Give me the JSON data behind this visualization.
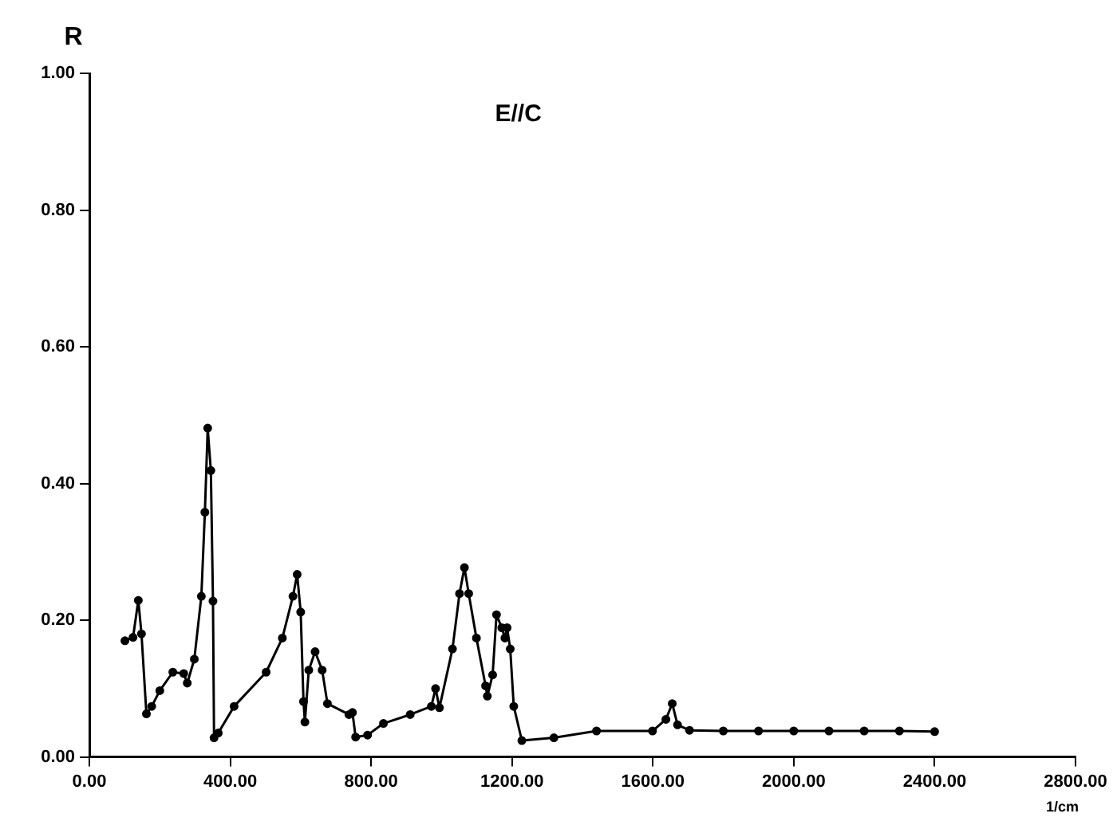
{
  "chart_data": {
    "type": "line",
    "title": "E//C",
    "ylabel": "R",
    "xlabel": "1/cm",
    "marker": "circle",
    "line_style": "solid",
    "xlim": [
      0,
      2800
    ],
    "xticks": [
      {
        "value": 0,
        "label": "0.00"
      },
      {
        "value": 400,
        "label": "400.00"
      },
      {
        "value": 800,
        "label": "800.00"
      },
      {
        "value": 1200,
        "label": "1200.00"
      },
      {
        "value": 1600,
        "label": "1600.00"
      },
      {
        "value": 2000,
        "label": "2000.00"
      },
      {
        "value": 2400,
        "label": "2400.00"
      },
      {
        "value": 2800,
        "label": "2800.00"
      }
    ],
    "ylim": [
      0,
      1
    ],
    "yticks": [
      {
        "value": 0,
        "label": "0.00"
      },
      {
        "value": 0.2,
        "label": "0.20"
      },
      {
        "value": 0.4,
        "label": "0.40"
      },
      {
        "value": 0.6,
        "label": "0.60"
      },
      {
        "value": 0.8,
        "label": "0.80"
      },
      {
        "value": 1,
        "label": "1.00"
      }
    ],
    "series": [
      {
        "color": "#000000",
        "x": [
          101,
          124,
          139,
          148,
          162,
          177,
          200,
          237,
          268,
          278,
          298,
          318,
          328,
          336,
          345,
          351,
          354,
          366,
          411,
          502,
          548,
          578,
          590,
          600,
          608,
          612,
          623,
          641,
          661,
          676,
          737,
          747,
          756,
          790,
          835,
          911,
          971,
          983,
          994,
          1031,
          1051,
          1065,
          1077,
          1099,
          1125,
          1130,
          1145,
          1156,
          1171,
          1180,
          1186,
          1195,
          1205,
          1228,
          1319,
          1440,
          1599,
          1637,
          1655,
          1670,
          1704,
          1800,
          1900,
          2000,
          2100,
          2200,
          2300,
          2400
        ],
        "values": [
          0.17,
          0.175,
          0.229,
          0.18,
          0.063,
          0.074,
          0.097,
          0.124,
          0.122,
          0.108,
          0.143,
          0.235,
          0.358,
          0.481,
          0.419,
          0.228,
          0.028,
          0.035,
          0.074,
          0.124,
          0.174,
          0.235,
          0.267,
          0.212,
          0.081,
          0.051,
          0.127,
          0.154,
          0.127,
          0.078,
          0.062,
          0.065,
          0.029,
          0.032,
          0.049,
          0.062,
          0.074,
          0.1,
          0.072,
          0.158,
          0.239,
          0.277,
          0.239,
          0.174,
          0.104,
          0.089,
          0.12,
          0.208,
          0.189,
          0.174,
          0.189,
          0.158,
          0.074,
          0.024,
          0.028,
          0.038,
          0.038,
          0.055,
          0.078,
          0.047,
          0.039,
          0.038,
          0.038,
          0.038,
          0.038,
          0.038,
          0.038,
          0.037
        ]
      }
    ]
  }
}
